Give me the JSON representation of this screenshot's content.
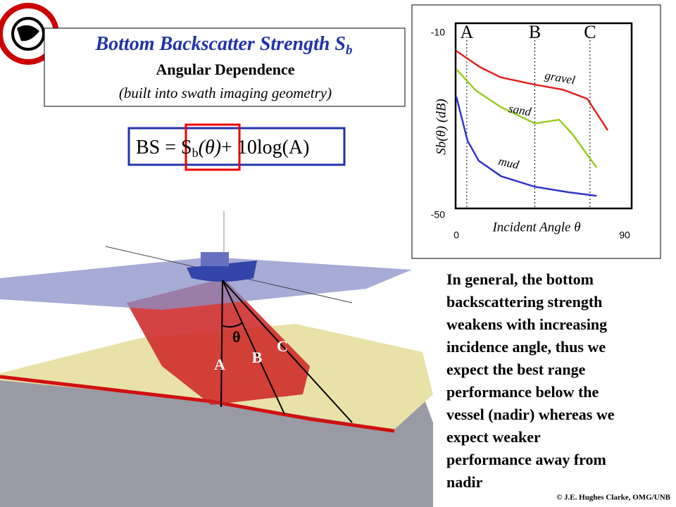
{
  "header": {
    "title": "Bottom Backscatter Strength S",
    "title_sub": "b",
    "subtitle": "Angular Dependence",
    "note": "(built into swath imaging geometry)"
  },
  "formula": {
    "left": "BS = S",
    "sub": "b",
    "theta": "(θ)",
    "right": "+ 10log(A)"
  },
  "illustration": {
    "angle": "θ",
    "beams": [
      "A",
      "B",
      "C"
    ]
  },
  "body": {
    "lines": [
      "In general, the bottom",
      "backscattering strength",
      "weakens with increasing",
      "incidence angle, thus we",
      "expect the best range",
      "performance below the",
      "vessel (nadir) whereas we",
      "expect weaker",
      "performance away from",
      "nadir"
    ]
  },
  "footer": {
    "credit": "© J.E. Hughes Clarke, OMG/UNB"
  },
  "chart_data": {
    "type": "line",
    "y_label": "Sb(θ) (dB)",
    "x_label": "Incident Angle θ",
    "xlim": [
      0,
      90
    ],
    "xticks": [
      0,
      90
    ],
    "ylim": [
      -50,
      -10
    ],
    "yticks": [
      -10,
      -50
    ],
    "annotations": [
      {
        "label": "A",
        "x": 5.6
      },
      {
        "label": "B",
        "x": 42
      },
      {
        "label": "C",
        "x": 71.5
      }
    ],
    "series": [
      {
        "name": "gravel",
        "color": "#e02020",
        "x": [
          0,
          12.4,
          23.7,
          42,
          57,
          70,
          81
        ],
        "values": [
          -13.9,
          -17.4,
          -19.7,
          -21.3,
          -22.4,
          -24.4,
          -31.3
        ]
      },
      {
        "name": "sand",
        "color": "#99cc22",
        "x": [
          0,
          10.2,
          23.7,
          42,
          55,
          62,
          75
        ],
        "values": [
          -17.9,
          -22.5,
          -26.2,
          -29.8,
          -29,
          -32.1,
          -39.5
        ]
      },
      {
        "name": "mud",
        "color": "#3333cc",
        "x": [
          0,
          6,
          12,
          24,
          42,
          60,
          75
        ],
        "values": [
          -23.9,
          -33.6,
          -38,
          -41.4,
          -43.7,
          -44.9,
          -45.7
        ]
      }
    ]
  }
}
